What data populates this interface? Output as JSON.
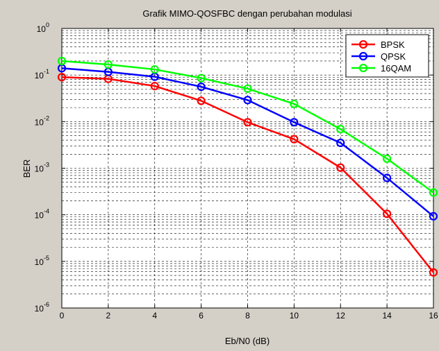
{
  "chart_data": {
    "type": "line",
    "title": "Grafik MIMO-QOSFBC dengan perubahan modulasi",
    "xlabel": "Eb/N0 (dB)",
    "ylabel": "BER",
    "x": [
      0,
      2,
      4,
      6,
      8,
      10,
      12,
      14,
      16
    ],
    "xlim": [
      0,
      16
    ],
    "ylim": [
      1e-06,
      1
    ],
    "yscale": "log",
    "x_ticks": [
      "0",
      "2",
      "4",
      "6",
      "8",
      "10",
      "12",
      "14",
      "16"
    ],
    "y_ticks": [
      {
        "base": "10",
        "exp": "-6"
      },
      {
        "base": "10",
        "exp": "-5"
      },
      {
        "base": "10",
        "exp": "-4"
      },
      {
        "base": "10",
        "exp": "-3"
      },
      {
        "base": "10",
        "exp": "-2"
      },
      {
        "base": "10",
        "exp": "-1"
      },
      {
        "base": "10",
        "exp": "0"
      }
    ],
    "grid": true,
    "legend_position": "top-right",
    "marker": "circle",
    "series": [
      {
        "name": "BPSK",
        "color": "#ff0000",
        "values": [
          0.09,
          0.083,
          0.058,
          0.028,
          0.0097,
          0.0042,
          0.00103,
          0.000105,
          5.8e-06
        ]
      },
      {
        "name": "QPSK",
        "color": "#0000ff",
        "values": [
          0.14,
          0.117,
          0.092,
          0.056,
          0.029,
          0.0097,
          0.0035,
          0.00062,
          9.3e-05
        ]
      },
      {
        "name": "16QAM",
        "color": "#00ff00",
        "values": [
          0.2,
          0.168,
          0.132,
          0.086,
          0.051,
          0.024,
          0.0069,
          0.0016,
          0.0003
        ]
      }
    ]
  }
}
